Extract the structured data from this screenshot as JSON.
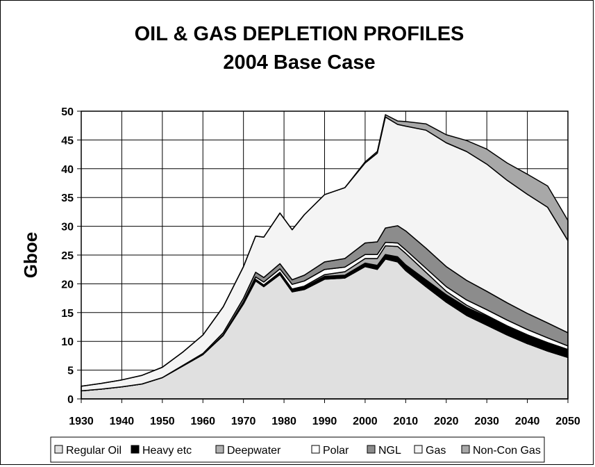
{
  "chart_data": {
    "type": "area",
    "stacked": true,
    "title": "OIL & GAS DEPLETION PROFILES",
    "subtitle": "2004 Base Case",
    "xlabel": "",
    "ylabel": "Gboe",
    "xlim": [
      1930,
      2050
    ],
    "ylim": [
      0,
      50
    ],
    "x_ticks": [
      1930,
      1940,
      1950,
      1960,
      1970,
      1980,
      1990,
      2000,
      2010,
      2020,
      2030,
      2040,
      2050
    ],
    "y_ticks": [
      0,
      5,
      10,
      15,
      20,
      25,
      30,
      35,
      40,
      45,
      50
    ],
    "grid": true,
    "legend_position": "bottom",
    "x": [
      1930,
      1935,
      1940,
      1945,
      1950,
      1955,
      1960,
      1965,
      1970,
      1973,
      1975,
      1979,
      1982,
      1985,
      1990,
      1995,
      2000,
      2003,
      2005,
      2008,
      2010,
      2015,
      2020,
      2025,
      2030,
      2035,
      2040,
      2045,
      2050
    ],
    "series": [
      {
        "name": "Regular Oil",
        "color": "#e0e0e0",
        "values": [
          1.4,
          1.7,
          2.1,
          2.6,
          3.7,
          5.7,
          7.7,
          11.0,
          16.5,
          20.5,
          19.5,
          21.6,
          18.6,
          19.0,
          20.8,
          21.0,
          23.0,
          22.5,
          24.3,
          23.8,
          22.3,
          19.5,
          16.8,
          14.5,
          12.8,
          11.1,
          9.6,
          8.3,
          7.2
        ]
      },
      {
        "name": "Heavy etc",
        "color": "#000000",
        "values": [
          0,
          0,
          0,
          0,
          0,
          0,
          0,
          0.1,
          0.2,
          0.3,
          0.3,
          0.4,
          0.4,
          0.4,
          0.5,
          0.5,
          0.6,
          0.7,
          0.8,
          0.9,
          1.0,
          1.2,
          1.3,
          1.4,
          1.5,
          1.5,
          1.5,
          1.5,
          1.4
        ]
      },
      {
        "name": "Deepwater",
        "color": "#b0b0b0",
        "values": [
          0,
          0,
          0,
          0,
          0,
          0,
          0,
          0,
          0,
          0,
          0,
          0,
          0.1,
          0.2,
          0.3,
          0.6,
          0.8,
          1.2,
          1.5,
          1.8,
          2.0,
          1.3,
          0.6,
          0.4,
          0.2,
          0.1,
          0.05,
          0,
          0
        ]
      },
      {
        "name": "Polar",
        "color": "#ffffff",
        "values": [
          0,
          0,
          0,
          0,
          0,
          0,
          0,
          0,
          0.2,
          0.4,
          0.5,
          0.6,
          0.8,
          0.9,
          0.9,
          0.8,
          0.7,
          0.7,
          0.6,
          0.6,
          0.6,
          0.7,
          0.8,
          0.9,
          1.0,
          1.0,
          0.9,
          0.8,
          0.6
        ]
      },
      {
        "name": "NGL",
        "color": "#8c8c8c",
        "values": [
          0,
          0,
          0,
          0,
          0,
          0.1,
          0.2,
          0.4,
          0.6,
          0.8,
          0.8,
          0.9,
          0.8,
          1.0,
          1.3,
          1.5,
          2.0,
          2.2,
          2.5,
          3.0,
          3.3,
          3.5,
          3.5,
          3.4,
          3.2,
          3.0,
          2.8,
          2.6,
          2.3
        ]
      },
      {
        "name": "Gas",
        "color": "#f4f4f4",
        "values": [
          0.8,
          1.0,
          1.2,
          1.5,
          1.8,
          2.3,
          3.2,
          4.5,
          5.5,
          6.3,
          7.0,
          8.8,
          8.7,
          10.5,
          11.7,
          12.3,
          13.9,
          15.4,
          19.3,
          17.6,
          18.2,
          20.5,
          21.5,
          22.4,
          22.1,
          21.3,
          20.7,
          20.1,
          16.0
        ]
      },
      {
        "name": "Non-Con Gas",
        "color": "#a8a8a8",
        "values": [
          0,
          0,
          0,
          0,
          0,
          0,
          0,
          0,
          0,
          0,
          0,
          0,
          0,
          0,
          0,
          0,
          0.2,
          0.3,
          0.4,
          0.6,
          0.8,
          1.1,
          1.4,
          1.9,
          2.6,
          3.0,
          3.5,
          3.7,
          3.5
        ]
      }
    ]
  }
}
